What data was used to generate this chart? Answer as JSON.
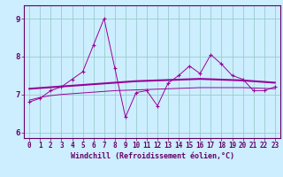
{
  "xlabel": "Windchill (Refroidissement éolien,°C)",
  "background_color": "#cceeff",
  "line_color": "#990099",
  "grid_color": "#99cccc",
  "x_values": [
    0,
    1,
    2,
    3,
    4,
    5,
    6,
    7,
    8,
    9,
    10,
    11,
    12,
    13,
    14,
    15,
    16,
    17,
    18,
    19,
    20,
    21,
    22,
    23
  ],
  "y_main": [
    6.8,
    6.9,
    7.1,
    7.2,
    7.4,
    7.6,
    8.3,
    9.0,
    7.7,
    6.4,
    7.05,
    7.1,
    6.7,
    7.3,
    7.5,
    7.75,
    7.55,
    8.05,
    7.8,
    7.5,
    7.4,
    7.1,
    7.1,
    7.2
  ],
  "y_avg": [
    7.15,
    7.17,
    7.19,
    7.21,
    7.23,
    7.25,
    7.27,
    7.29,
    7.31,
    7.33,
    7.35,
    7.36,
    7.37,
    7.38,
    7.39,
    7.4,
    7.41,
    7.4,
    7.39,
    7.38,
    7.37,
    7.35,
    7.33,
    7.31
  ],
  "y_trend": [
    6.85,
    6.92,
    6.97,
    7.0,
    7.02,
    7.04,
    7.06,
    7.08,
    7.1,
    7.11,
    7.12,
    7.13,
    7.14,
    7.15,
    7.16,
    7.17,
    7.18,
    7.18,
    7.18,
    7.18,
    7.18,
    7.17,
    7.16,
    7.15
  ],
  "ylim": [
    5.85,
    9.35
  ],
  "yticks": [
    6,
    7,
    8,
    9
  ],
  "axis_color": "#660066",
  "tick_label_fontsize": 5.5
}
